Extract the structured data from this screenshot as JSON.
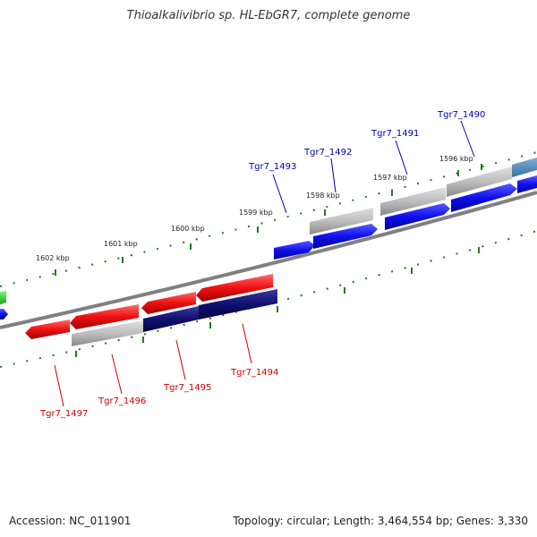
{
  "title": "Thioalkalivibrio sp. HL-EbGR7, complete genome",
  "footer": {
    "accession": "Accession: NC_011901",
    "topology": "Topology: circular; Length: 3,464,554 bp; Genes: 3,330"
  },
  "ticks": [
    "1602 kbp",
    "1601 kbp",
    "1600 kbp",
    "1599 kbp",
    "1598 kbp",
    "1597 kbp",
    "1596 kbp"
  ],
  "genes_forward": [
    "Tgr7_1493",
    "Tgr7_1492",
    "Tgr7_1491",
    "Tgr7_1490"
  ],
  "genes_reverse": [
    "Tgr7_1497",
    "Tgr7_1496",
    "Tgr7_1495",
    "Tgr7_1494"
  ],
  "colors": {
    "forward_gene": "#1010ee",
    "reverse_gene": "#ee1111",
    "reverse_gene_dark": "#101070",
    "grey_gene": "#b0b0b0",
    "backbone": "#808080",
    "tick": "#1f7a1f",
    "forward_label": "#0000aa",
    "reverse_label": "#cc0000"
  }
}
